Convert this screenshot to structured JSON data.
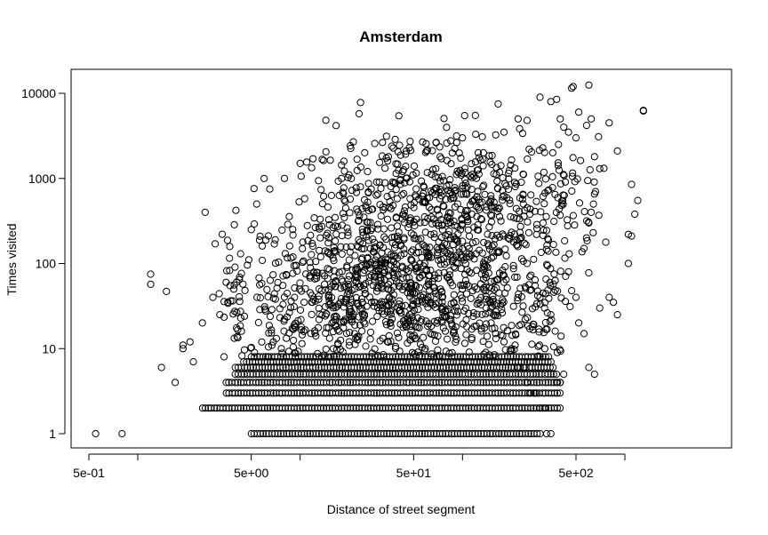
{
  "chart_data": {
    "type": "scatter",
    "title": "Amsterdam",
    "xlabel": "Distance of street segment",
    "ylabel": "Times visited",
    "x_scale": "log",
    "y_scale": "log",
    "xlim": [
      0.4,
      1500
    ],
    "ylim": [
      0.7,
      15000
    ],
    "x_ticks": [
      {
        "value": 0.5,
        "label": "5e-01"
      },
      {
        "value": 1,
        "label": ""
      },
      {
        "value": 5,
        "label": "5e+00"
      },
      {
        "value": 10,
        "label": ""
      },
      {
        "value": 50,
        "label": "5e+01"
      },
      {
        "value": 100,
        "label": ""
      },
      {
        "value": 500,
        "label": "5e+02"
      },
      {
        "value": 1000,
        "label": ""
      }
    ],
    "y_ticks": [
      {
        "value": 1,
        "label": "1"
      },
      {
        "value": 10,
        "label": "10"
      },
      {
        "value": 100,
        "label": "100"
      },
      {
        "value": 1000,
        "label": "1000"
      },
      {
        "value": 10000,
        "label": "10000"
      }
    ],
    "grid": false,
    "legend": "none",
    "point_shape": "open-circle",
    "point_color": "#000000",
    "density_bands": [
      {
        "y": 1,
        "x_range": [
          5,
          300
        ]
      },
      {
        "y": 2,
        "x_range": [
          2.5,
          400
        ]
      },
      {
        "y": 3,
        "x_range": [
          3.5,
          400
        ]
      },
      {
        "y": 4,
        "x_range": [
          3.5,
          400
        ]
      },
      {
        "y": 5,
        "x_range": [
          4,
          380
        ]
      },
      {
        "y": 6,
        "x_range": [
          4,
          360
        ]
      },
      {
        "y": 7,
        "x_range": [
          4.5,
          350
        ]
      },
      {
        "y": 8,
        "x_range": [
          5,
          340
        ]
      }
    ],
    "density_clouds": [
      {
        "x_range": [
          5,
          300
        ],
        "y_range": [
          8,
          200
        ]
      },
      {
        "x_range": [
          15,
          500
        ],
        "y_range": [
          100,
          2500
        ]
      }
    ],
    "points": [
      [
        0.55,
        1
      ],
      [
        0.8,
        1
      ],
      [
        1.2,
        75
      ],
      [
        1.2,
        57
      ],
      [
        1.5,
        47
      ],
      [
        1.7,
        4
      ],
      [
        1.9,
        11
      ],
      [
        1.9,
        10
      ],
      [
        1.4,
        6
      ],
      [
        2.1,
        12
      ],
      [
        2.2,
        7
      ],
      [
        2.5,
        20
      ],
      [
        2.6,
        400
      ],
      [
        3.0,
        170
      ],
      [
        2.9,
        40
      ],
      [
        3.2,
        25
      ],
      [
        3.5,
        60
      ],
      [
        3.7,
        55
      ],
      [
        3.9,
        50
      ],
      [
        4.3,
        130
      ],
      [
        5.0,
        250
      ],
      [
        5.2,
        760
      ],
      [
        5.4,
        500
      ],
      [
        6.0,
        1000
      ],
      [
        6.5,
        750
      ],
      [
        8.0,
        1000
      ],
      [
        10,
        1500
      ],
      [
        12,
        1700
      ],
      [
        18,
        1000
      ],
      [
        20,
        1100
      ],
      [
        25,
        2000
      ],
      [
        35,
        1800
      ],
      [
        45,
        2100
      ],
      [
        60,
        2100
      ],
      [
        80,
        2600
      ],
      [
        100,
        3000
      ],
      [
        120,
        5500
      ],
      [
        180,
        3500
      ],
      [
        220,
        5000
      ],
      [
        250,
        4800
      ],
      [
        300,
        9000
      ],
      [
        350,
        8000
      ],
      [
        380,
        8500
      ],
      [
        400,
        5000
      ],
      [
        470,
        11500
      ],
      [
        480,
        12000
      ],
      [
        600,
        12500
      ],
      [
        520,
        6000
      ],
      [
        620,
        5000
      ],
      [
        800,
        4500
      ],
      [
        900,
        2100
      ],
      [
        1300,
        6200
      ],
      [
        1300,
        6300
      ],
      [
        1100,
        850
      ],
      [
        1200,
        550
      ],
      [
        1050,
        220
      ],
      [
        1100,
        210
      ],
      [
        1150,
        380
      ],
      [
        1050,
        100
      ],
      [
        900,
        25
      ],
      [
        850,
        35
      ],
      [
        800,
        40
      ],
      [
        700,
        30
      ],
      [
        600,
        6
      ],
      [
        650,
        5
      ],
      [
        560,
        15
      ],
      [
        520,
        20
      ],
      [
        500,
        40
      ],
      [
        450,
        80
      ],
      [
        420,
        5
      ],
      [
        400,
        4
      ],
      [
        380,
        4
      ],
      [
        350,
        1
      ],
      [
        330,
        1
      ],
      [
        320,
        2
      ],
      [
        300,
        2
      ],
      [
        280,
        3
      ],
      [
        260,
        3
      ],
      [
        250,
        4
      ],
      [
        240,
        6
      ],
      [
        220,
        6
      ],
      [
        200,
        10
      ],
      [
        180,
        12
      ],
      [
        160,
        15
      ],
      [
        150,
        20
      ],
      [
        140,
        30
      ],
      [
        130,
        40
      ],
      [
        350,
        25
      ],
      [
        320,
        30
      ],
      [
        300,
        40
      ],
      [
        280,
        55
      ],
      [
        260,
        70
      ],
      [
        250,
        100
      ],
      [
        600,
        300
      ],
      [
        620,
        400
      ],
      [
        640,
        500
      ],
      [
        660,
        700
      ],
      [
        580,
        200
      ],
      [
        560,
        150
      ],
      [
        700,
        1300
      ],
      [
        650,
        1800
      ],
      [
        500,
        3000
      ],
      [
        450,
        3500
      ],
      [
        420,
        4000
      ],
      [
        390,
        2500
      ],
      [
        360,
        2000
      ]
    ]
  }
}
